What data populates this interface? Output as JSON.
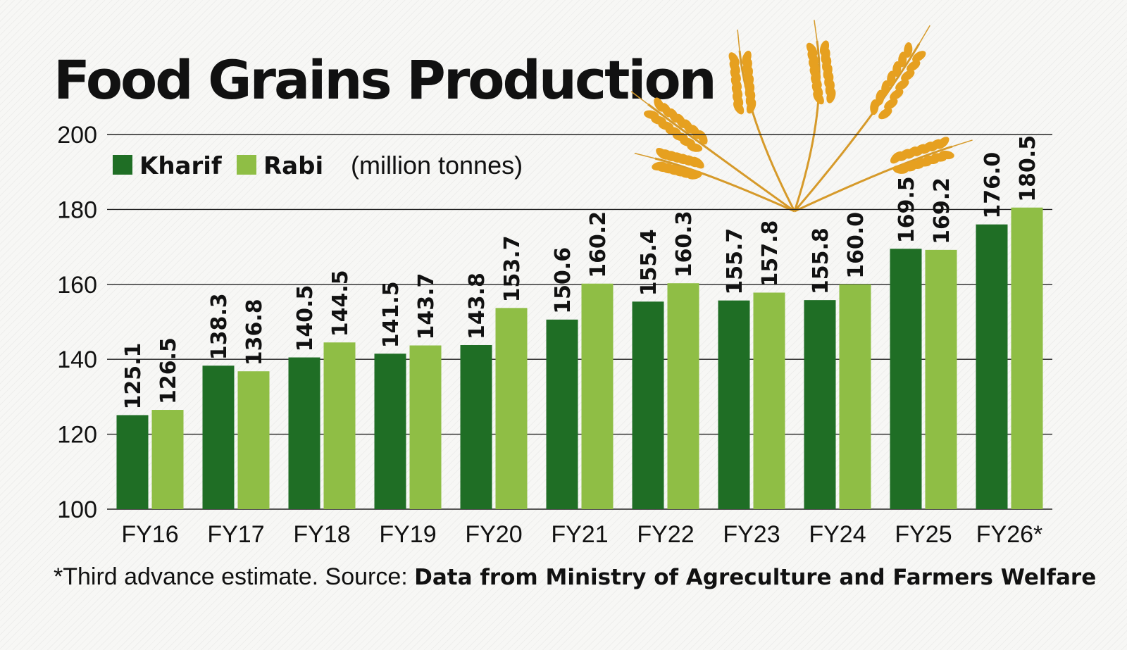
{
  "chart_data": {
    "type": "bar",
    "title": "Food Grains Production",
    "unit_note": "(million tonnes)",
    "categories": [
      "FY16",
      "FY17",
      "FY18",
      "FY19",
      "FY20",
      "FY21",
      "FY22",
      "FY23",
      "FY24",
      "FY25",
      "FY26*"
    ],
    "series": [
      {
        "name": "Kharif",
        "color": "#1f6e25",
        "values": [
          125.1,
          138.3,
          140.5,
          141.5,
          143.8,
          150.6,
          155.4,
          155.7,
          155.8,
          169.5,
          176.0
        ]
      },
      {
        "name": "Rabi",
        "color": "#8fbe45",
        "values": [
          126.5,
          136.8,
          144.5,
          143.7,
          153.7,
          160.2,
          160.3,
          157.8,
          160.0,
          169.2,
          180.5
        ]
      }
    ],
    "ylim": [
      100,
      200
    ],
    "yticks": [
      100,
      120,
      140,
      160,
      180,
      200
    ],
    "grid": true,
    "legend_position": "top-left",
    "footnote": "*Third advance estimate. Source: ",
    "source": "Data from Ministry of Agreculture and Farmers Welfare"
  },
  "decoration": {
    "image": "wheat-ears",
    "color": "#e6a020"
  }
}
